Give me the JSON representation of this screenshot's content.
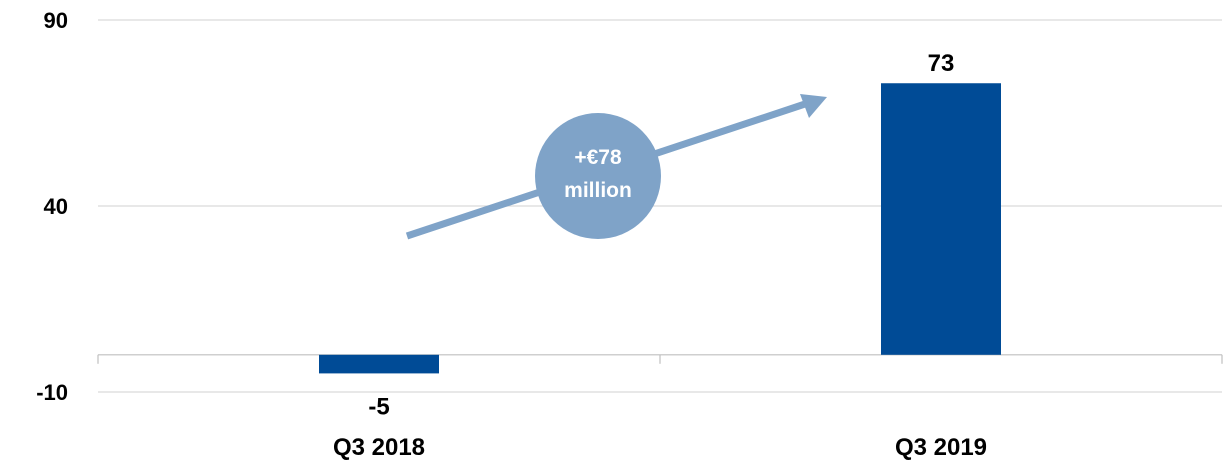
{
  "chart_data": {
    "type": "bar",
    "categories": [
      "Q3 2018",
      "Q3 2019"
    ],
    "values": [
      -5,
      73
    ],
    "data_labels": [
      "-5",
      "73"
    ],
    "ylim": [
      -10,
      90
    ],
    "yticks": [
      -10,
      40,
      90
    ],
    "ytick_labels": [
      "-10",
      "40",
      "90"
    ],
    "grid": true,
    "title": "",
    "xlabel": "",
    "ylabel": "",
    "annotation": {
      "line1": "+€78",
      "line2": "million"
    },
    "colors": {
      "bar": "#004b96",
      "badge": "#7fa3c8",
      "arrow": "#7fa3c8",
      "grid": "#d9d9d9",
      "axis": "#bfbfbf"
    }
  }
}
